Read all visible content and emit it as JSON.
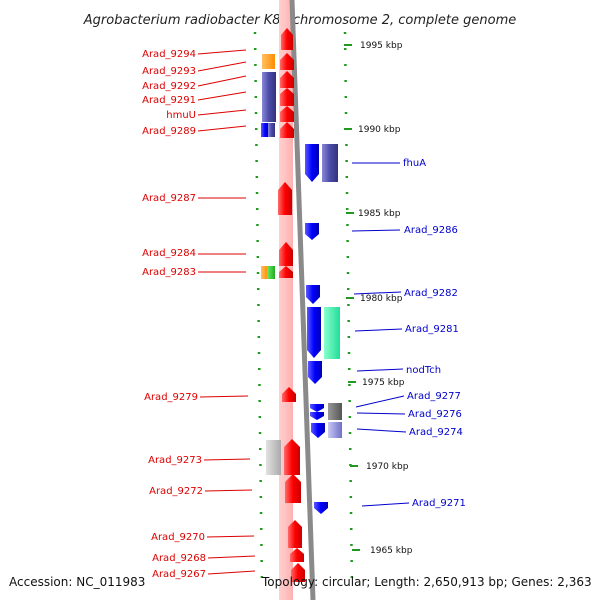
{
  "title": "Agrobacterium radiobacter K84 chromosome 2, complete genome",
  "footer": {
    "accession": "Accession: NC_011983",
    "summary": "Topology: circular; Length: 2,650,913 bp; Genes: 2,363"
  },
  "scale_labels": [
    "1995 kbp",
    "1990 kbp",
    "1985 kbp",
    "1980 kbp",
    "1975 kbp",
    "1970 kbp",
    "1965 kbp"
  ],
  "colors": {
    "left_label": "#dd0000",
    "right_label": "#0000cc",
    "forward_gene": "#ff0000",
    "reverse_gene": "#0000ff"
  },
  "left_genes": [
    "Arad_9294",
    "Arad_9293",
    "Arad_9292",
    "Arad_9291",
    "hmuU",
    "Arad_9289",
    "Arad_9287",
    "Arad_9284",
    "Arad_9283",
    "Arad_9279",
    "Arad_9273",
    "Arad_9272",
    "Arad_9270",
    "Arad_9268",
    "Arad_9267"
  ],
  "right_genes": [
    "fhuA",
    "Arad_9286",
    "Arad_9282",
    "Arad_9281",
    "nodTch",
    "Arad_9277",
    "Arad_9276",
    "Arad_9274",
    "Arad_9271"
  ]
}
